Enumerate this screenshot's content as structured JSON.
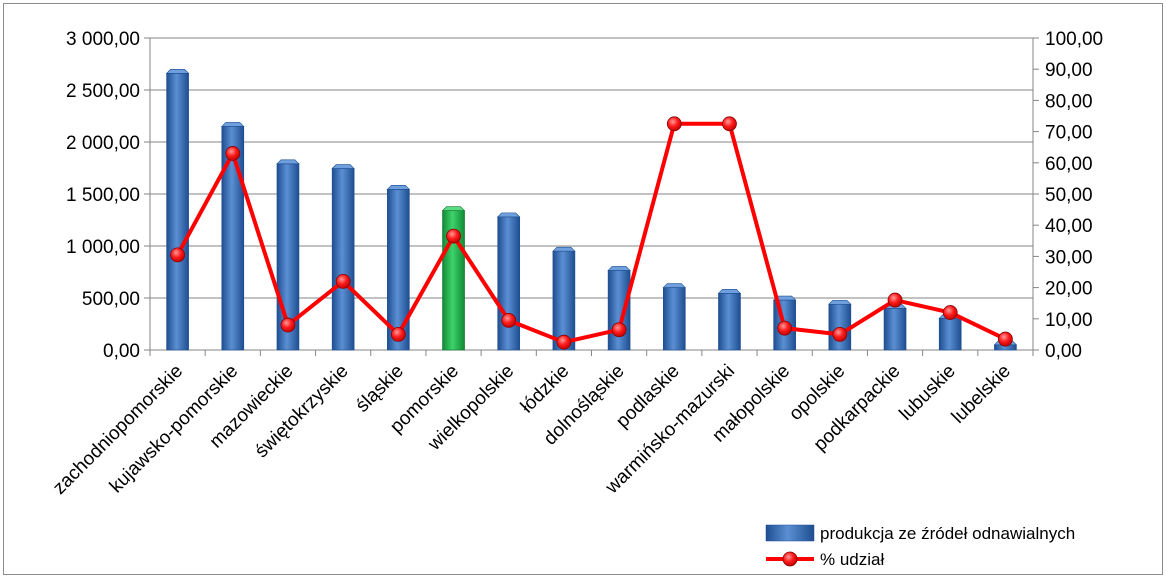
{
  "chart_data": {
    "type": "bar+line",
    "categories": [
      "zachodniopomorskie",
      "kujawsko-pomorskie",
      "mazowieckie",
      "świętokrzyskie",
      "śląskie",
      "pomorskie",
      "wielkopolskie",
      "łódzkie",
      "dolnośląskie",
      "podlaskie",
      "warmińsko-mazurski",
      "małopolskie",
      "opolskie",
      "podkarpackie",
      "lubuskie",
      "lubelskie"
    ],
    "series": [
      {
        "name": "produkcja ze źródeł odnawialnych",
        "type": "bar",
        "axis": "left",
        "color": "#3b6fb6",
        "highlight_color": "#1fae4a",
        "highlight_index": 5,
        "values": [
          2660,
          2150,
          1790,
          1745,
          1545,
          1340,
          1280,
          950,
          765,
          600,
          545,
          480,
          440,
          400,
          305,
          50
        ]
      },
      {
        "name": "% udział",
        "type": "line",
        "axis": "right",
        "color": "#ff0000",
        "values": [
          30.5,
          63,
          8,
          22,
          5,
          36.5,
          9.5,
          2.5,
          6.5,
          72.5,
          72.5,
          7,
          5,
          16,
          12,
          3.5
        ]
      }
    ],
    "y_left": {
      "min": 0,
      "max": 3000,
      "ticks": [
        0,
        500,
        1000,
        1500,
        2000,
        2500,
        3000
      ],
      "tick_labels": [
        "0,00",
        "500,00",
        "1 000,00",
        "1 500,00",
        "2 000,00",
        "2 500,00",
        "3 000,00"
      ]
    },
    "y_right": {
      "min": 0,
      "max": 100,
      "ticks": [
        0,
        10,
        20,
        30,
        40,
        50,
        60,
        70,
        80,
        90,
        100
      ],
      "tick_labels": [
        "0,00",
        "10,00",
        "20,00",
        "30,00",
        "40,00",
        "50,00",
        "60,00",
        "70,00",
        "80,00",
        "90,00",
        "100,00"
      ]
    },
    "grid": true,
    "legend_position": "bottom-right"
  }
}
